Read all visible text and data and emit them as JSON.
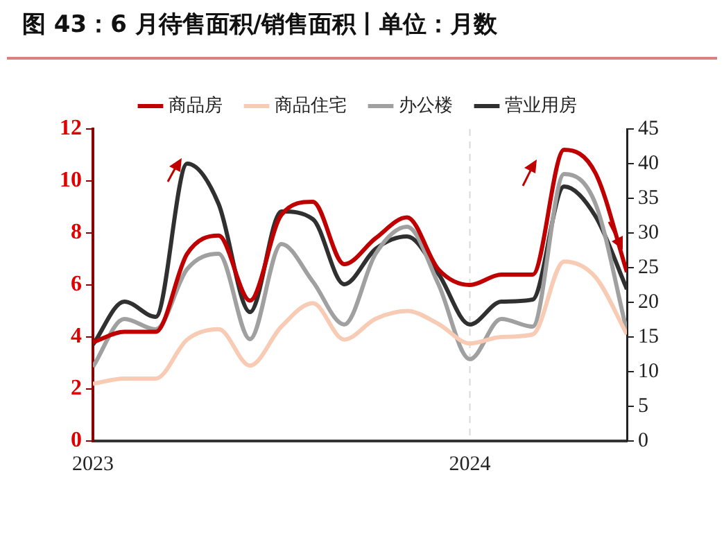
{
  "chart_data": {
    "type": "line",
    "title": "图 43：6 月待售面积/销售面积丨单位：月数",
    "x": [
      "2023-01",
      "2023-02",
      "2023-03",
      "2023-04",
      "2023-05",
      "2023-06",
      "2023-07",
      "2023-08",
      "2023-09",
      "2023-10",
      "2023-11",
      "2023-12",
      "2024-01",
      "2024-02",
      "2024-03",
      "2024-04",
      "2024-05",
      "2024-06"
    ],
    "series": [
      {
        "name": "商品房",
        "color": "#c00000",
        "values": [
          3.8,
          4.2,
          4.2,
          7.2,
          7.9,
          5.4,
          8.7,
          9.2,
          6.8,
          7.8,
          8.6,
          6.6,
          6.0,
          6.4,
          6.4,
          11.2,
          10.3,
          6.5
        ]
      },
      {
        "name": "商品住宅",
        "color": "#f8cbb4",
        "values": [
          2.2,
          2.4,
          2.4,
          3.9,
          4.3,
          2.9,
          4.4,
          5.3,
          3.9,
          4.7,
          5.0,
          4.5,
          3.75,
          4.0,
          4.1,
          6.9,
          6.3,
          4.1
        ]
      },
      {
        "name": "办公楼",
        "color": "#a0a0a0",
        "axis": "y2",
        "values": [
          10.7,
          17.6,
          16.1,
          24.8,
          27,
          14.7,
          28.4,
          23,
          16.8,
          27,
          30.9,
          22.6,
          11.8,
          17.6,
          16.5,
          38.5,
          34.2,
          15.8
        ]
      },
      {
        "name": "营业用房",
        "color": "#303030",
        "axis": "y2",
        "values": [
          13.9,
          20.1,
          17.9,
          40,
          34.2,
          18.6,
          33.1,
          32,
          22.6,
          27.7,
          29.5,
          24.1,
          16.8,
          20.1,
          20.4,
          36.7,
          32.4,
          21.9
        ]
      }
    ],
    "xlim": [
      "2023-01",
      "2024-06"
    ],
    "xticks": [
      {
        "value": "2023-01",
        "label": "2023"
      },
      {
        "value": "2024-01",
        "label": "2024"
      }
    ],
    "ylim": [
      0,
      12
    ],
    "yticks": [
      0,
      2,
      4,
      6,
      8,
      10,
      12
    ],
    "y2lim": [
      0,
      45
    ],
    "y2ticks": [
      0,
      5,
      10,
      15,
      20,
      25,
      30,
      35,
      40,
      45
    ],
    "ref_lines": [
      {
        "axis": "x",
        "value": "2024-01",
        "color": "#d9d9d9",
        "line_style": "dashed"
      }
    ],
    "legend": "top",
    "grid": false,
    "marker": "none",
    "line_style": "solid"
  }
}
